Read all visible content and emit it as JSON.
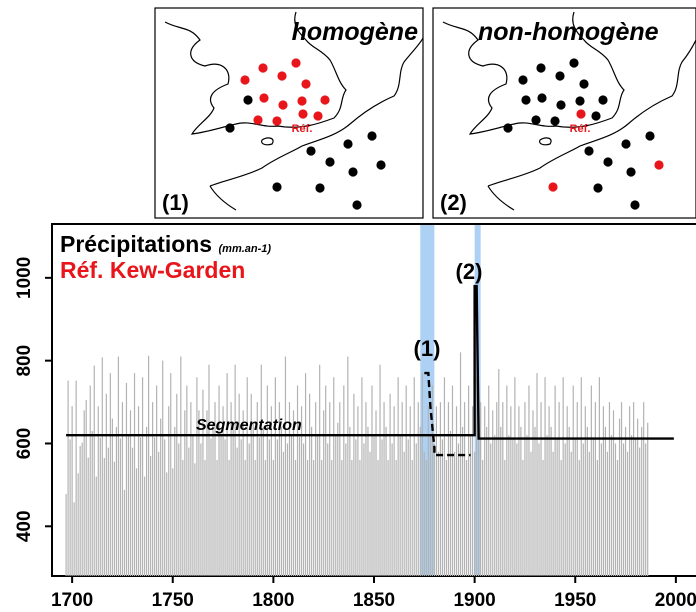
{
  "inset_maps": [
    {
      "id": "1",
      "title": "homogène",
      "number_label": "(1)",
      "ref_label": "Réf.",
      "station_colors_note": "red = stations homogeneous with reference; black = others",
      "stations": [
        {
          "c": "red"
        },
        {
          "c": "red"
        },
        {
          "c": "red"
        },
        {
          "c": "red"
        },
        {
          "c": "red"
        },
        {
          "c": "red"
        },
        {
          "c": "red"
        },
        {
          "c": "red"
        },
        {
          "c": "red"
        },
        {
          "c": "red"
        },
        {
          "c": "red"
        },
        {
          "c": "red"
        },
        {
          "c": "red"
        },
        {
          "c": "red"
        },
        {
          "c": "black"
        },
        {
          "c": "black"
        },
        {
          "c": "black"
        },
        {
          "c": "black"
        },
        {
          "c": "black"
        },
        {
          "c": "black"
        },
        {
          "c": "black"
        },
        {
          "c": "black"
        },
        {
          "c": "black"
        },
        {
          "c": "black"
        }
      ]
    },
    {
      "id": "2",
      "title": "non-homogène",
      "number_label": "(2)",
      "ref_label": "Réf."
    }
  ],
  "colors": {
    "highlight_red": "#e8161b",
    "bars": "#b3b3b3",
    "band": "#9ec9f2",
    "text": "#000000"
  },
  "chart_data": {
    "type": "bar",
    "title": "Précipitations",
    "title_units": "(mm.an-1)",
    "subtitle": "Réf. Kew-Garden",
    "segmentation_label": "Segmentation",
    "annotations": [
      "(1)",
      "(2)"
    ],
    "x_ticks": [
      "1700",
      "1750",
      "1800",
      "1850",
      "1900",
      "1950",
      "2000"
    ],
    "y_ticks": [
      "400",
      "600",
      "800",
      "1000"
    ],
    "xlim": [
      1690,
      2010
    ],
    "ylim": [
      280,
      1130
    ],
    "bar_baseline": 280,
    "year_start": 1697,
    "year_end": 1999,
    "highlight_bands": [
      {
        "from": 1873,
        "to": 1880
      },
      {
        "from": 1900,
        "to": 1903
      }
    ],
    "segmentation_solid": [
      {
        "x": [
          1697,
          1900,
          1900,
          1901,
          1902,
          1999
        ],
        "y": [
          620,
          620,
          980,
          980,
          612,
          612
        ]
      }
    ],
    "segmentation_dashed": [
      {
        "x": [
          1875,
          1877,
          1878,
          1880,
          1880,
          1898
        ],
        "y": [
          770,
          770,
          690,
          590,
          572,
          572
        ]
      }
    ],
    "values": [
      478,
      752,
      610,
      690,
      458,
      752,
      528,
      594,
      602,
      680,
      705,
      566,
      740,
      630,
      788,
      520,
      690,
      614,
      808,
      565,
      720,
      590,
      770,
      660,
      556,
      640,
      810,
      612,
      700,
      488,
      746,
      620,
      680,
      590,
      770,
      540,
      690,
      615,
      760,
      520,
      640,
      812,
      570,
      700,
      615,
      740,
      580,
      660,
      800,
      610,
      530,
      690,
      770,
      540,
      640,
      720,
      600,
      810,
      560,
      680,
      740,
      590,
      700,
      620,
      552,
      760,
      680,
      600,
      730,
      560,
      680,
      790,
      612,
      650,
      700,
      560,
      740,
      620,
      690,
      610,
      770,
      560,
      700,
      640,
      790,
      590,
      720,
      610,
      680,
      560,
      760,
      600,
      720,
      650,
      560,
      700,
      615,
      790,
      640,
      560,
      740,
      610,
      690,
      560,
      760,
      610,
      700,
      640,
      580,
      810,
      600,
      700,
      620,
      680,
      560,
      740,
      616,
      690,
      600,
      770,
      560,
      720,
      640,
      560,
      700,
      620,
      790,
      560,
      680,
      740,
      600,
      700,
      560,
      760,
      620,
      650,
      700,
      560,
      740,
      600,
      810,
      640,
      560,
      720,
      610,
      690,
      560,
      760,
      600,
      700,
      640,
      580,
      740,
      620,
      680,
      560,
      790,
      610,
      700,
      640,
      560,
      720,
      600,
      690,
      560,
      760,
      620,
      700,
      580,
      740,
      610,
      690,
      560,
      760,
      600,
      700,
      640,
      770,
      580,
      560,
      690,
      620,
      740,
      600,
      690,
      580,
      700,
      610,
      760,
      560,
      700,
      630,
      740,
      580,
      690,
      600,
      820,
      640,
      700,
      560,
      740,
      620,
      690,
      580,
      760,
      610,
      700,
      560,
      690,
      640,
      740,
      600,
      680,
      620,
      700,
      780,
      640,
      700,
      560,
      740,
      620,
      690,
      610,
      760,
      600,
      690,
      640,
      560,
      700,
      620,
      740,
      580,
      680,
      640,
      770,
      600,
      700,
      560,
      760,
      620,
      690,
      640,
      580,
      740,
      610,
      700,
      560,
      760,
      600,
      690,
      640,
      580,
      740,
      610,
      700,
      560,
      760,
      600,
      690,
      640,
      580,
      740,
      610,
      700,
      560,
      760,
      600,
      690,
      640,
      580,
      700,
      620,
      680,
      600,
      560,
      660,
      700,
      600,
      640,
      580,
      690,
      620,
      700,
      610,
      660,
      590,
      640,
      700,
      600,
      650
    ]
  }
}
